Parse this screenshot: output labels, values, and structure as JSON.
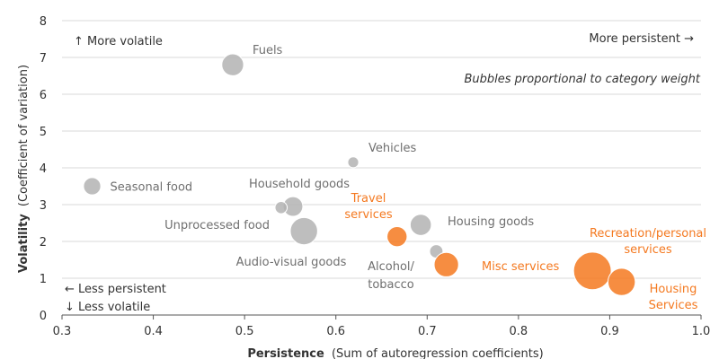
{
  "chart_data": {
    "type": "scatter",
    "subtype": "bubble",
    "xlabel_bold": "Persistence",
    "xlabel_rest": "(Sum of autoregression coefficients)",
    "ylabel_bold": "Volatility",
    "ylabel_rest": "(Coefficient of variation)",
    "xlim": [
      0.3,
      1.0
    ],
    "ylim": [
      0,
      8
    ],
    "x_ticks": [
      "0.3",
      "0.4",
      "0.5",
      "0.6",
      "0.7",
      "0.8",
      "0.9",
      "1.0"
    ],
    "y_ticks": [
      "0",
      "1",
      "2",
      "3",
      "4",
      "5",
      "6",
      "7",
      "8"
    ],
    "grid": "horizontal",
    "annotations": {
      "top_left": "↑ More volatile",
      "top_right": "More persistent →",
      "note": "Bubbles proportional to category weight",
      "bottom_left_1": "← Less persistent",
      "bottom_left_2": "↓ Less volatile"
    },
    "colors": {
      "goods": "#b3b3b3",
      "services": "#f47920",
      "goods_text": "#6f6f6f",
      "services_text": "#f47920"
    },
    "points": [
      {
        "label": [
          "Fuels"
        ],
        "x": 0.487,
        "y": 6.8,
        "weight": 3.2,
        "group": "goods"
      },
      {
        "label": [
          "Seasonal food"
        ],
        "x": 0.333,
        "y": 3.5,
        "weight": 2.0,
        "group": "goods"
      },
      {
        "label": [
          "Vehicles"
        ],
        "x": 0.619,
        "y": 4.15,
        "weight": 0.8,
        "group": "goods"
      },
      {
        "label": [
          "Household goods"
        ],
        "x": 0.553,
        "y": 2.95,
        "weight": 2.6,
        "group": "goods"
      },
      {
        "label": [],
        "x": 0.54,
        "y": 2.92,
        "weight": 1.0,
        "group": "goods"
      },
      {
        "label": [
          "Unprocessed food"
        ],
        "x": 0.565,
        "y": 2.28,
        "weight": 5.0,
        "group": "goods"
      },
      {
        "label": [
          "Audio-visual goods"
        ],
        "x": 0.565,
        "y": 2.28,
        "weight": 0,
        "group": "goods"
      },
      {
        "label": [
          "Housing goods"
        ],
        "x": 0.693,
        "y": 2.45,
        "weight": 3.0,
        "group": "goods"
      },
      {
        "label": [
          "Alcohol/",
          "tobacco"
        ],
        "x": 0.71,
        "y": 1.73,
        "weight": 1.2,
        "group": "goods"
      },
      {
        "label": [
          "Travel",
          "services"
        ],
        "x": 0.667,
        "y": 2.13,
        "weight": 2.7,
        "group": "services"
      },
      {
        "label": [
          "Misc services"
        ],
        "x": 0.721,
        "y": 1.37,
        "weight": 4.0,
        "group": "services"
      },
      {
        "label": [
          "Recreation/personal",
          "services"
        ],
        "x": 0.881,
        "y": 1.2,
        "weight": 9.5,
        "group": "services"
      },
      {
        "label": [
          "Housing",
          "Services"
        ],
        "x": 0.913,
        "y": 0.9,
        "weight": 5.0,
        "group": "services"
      }
    ]
  }
}
